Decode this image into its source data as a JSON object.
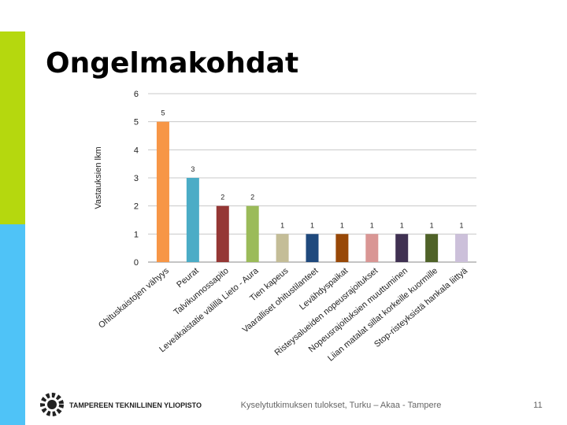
{
  "slide": {
    "title": "Ongelmakohdat",
    "logo_text": "TAMPEREEN TEKNILLINEN YLIOPISTO",
    "footer": "Kyselytutkimuksen tulokset, Turku – Akaa - Tampere",
    "page_number": "11"
  },
  "chart_data": {
    "type": "bar",
    "y_label": "Vastauksien lkm",
    "categories": [
      "Ohituskaistojen vähyys",
      "Peurat",
      "Talvikunnossapito",
      "Leveäkaistatie välillä Lieto - Aura",
      "Tien kapeus",
      "Vaaralliset ohitustilanteet",
      "Levähdyspaikat",
      "Risteysalueiden nopeusrajoitukset",
      "Nopeusrajoituksien muuttuminen",
      "Liian matalat sillat korkeille kuormille",
      "Stop-risteyksistä hankala liittyä"
    ],
    "values": [
      5,
      3,
      2,
      2,
      1,
      1,
      1,
      1,
      1,
      1,
      1
    ],
    "colors": [
      "#f79646",
      "#4bacc6",
      "#953735",
      "#9bbb59",
      "#c4bd97",
      "#1f497d",
      "#984807",
      "#d99694",
      "#403152",
      "#4f6228",
      "#ccc0da"
    ],
    "ylim": [
      0,
      6
    ],
    "yticks": [
      0,
      1,
      2,
      3,
      4,
      5,
      6
    ],
    "grid": true
  }
}
